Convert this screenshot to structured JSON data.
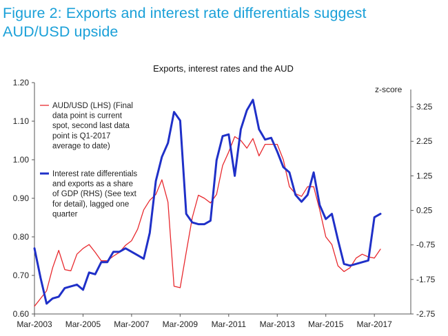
{
  "figure": {
    "title_line1": "Figure 2: Exports and interest rate differentials suggest",
    "title_line2": "AUD/USD upside"
  },
  "chart_data": {
    "type": "line",
    "title": "Exports, interest rates and the AUD",
    "right_axis_label": "z-score",
    "x_tick_labels": [
      "Mar-2003",
      "Mar-2005",
      "Mar-2007",
      "Mar-2009",
      "Mar-2011",
      "Mar-2013",
      "Mar-2015",
      "Mar-2017"
    ],
    "x_tick_years": [
      2003,
      2005,
      2007,
      2009,
      2011,
      2013,
      2015,
      2017
    ],
    "xlim": [
      2003,
      2018.5
    ],
    "y_left": {
      "lim": [
        0.6,
        1.2
      ],
      "ticks": [
        0.6,
        0.7,
        0.8,
        0.9,
        1.0,
        1.1,
        1.2
      ],
      "tick_labels": [
        "0.60",
        "0.70",
        "0.80",
        "0.90",
        "1.00",
        "1.10",
        "1.20"
      ]
    },
    "y_right": {
      "lim": [
        -2.75,
        3.75
      ],
      "ticks": [
        -2.75,
        -1.75,
        -0.75,
        0.25,
        1.25,
        2.25,
        3.25
      ],
      "tick_labels": [
        "-2.75",
        "-1.75",
        "-0.75",
        "0.25",
        "1.25",
        "2.25",
        "3.25"
      ]
    },
    "grid": false,
    "legend_placement": "top-left",
    "series": [
      {
        "name": "AUD/USD (LHS) (Final data point is current spot, second last data point is Q1-2017 average to date)",
        "legend_lines": [
          "AUD/USD (LHS) (Final",
          "data point is current",
          "spot, second last data",
          "point is Q1-2017",
          "average to date)"
        ],
        "axis": "left",
        "color": "#e8292e",
        "x": [
          2003.0,
          2003.25,
          2003.5,
          2003.75,
          2004.0,
          2004.25,
          2004.5,
          2004.75,
          2005.0,
          2005.25,
          2005.5,
          2005.75,
          2006.0,
          2006.25,
          2006.5,
          2006.75,
          2007.0,
          2007.25,
          2007.5,
          2007.75,
          2008.0,
          2008.25,
          2008.5,
          2008.75,
          2009.0,
          2009.25,
          2009.5,
          2009.75,
          2010.0,
          2010.25,
          2010.5,
          2010.75,
          2011.0,
          2011.25,
          2011.5,
          2011.75,
          2012.0,
          2012.25,
          2012.5,
          2012.75,
          2013.0,
          2013.25,
          2013.5,
          2013.75,
          2014.0,
          2014.25,
          2014.5,
          2014.75,
          2015.0,
          2015.25,
          2015.5,
          2015.75,
          2016.0,
          2016.25,
          2016.5,
          2016.75,
          2017.0,
          2017.25
        ],
        "values": [
          0.62,
          0.64,
          0.66,
          0.72,
          0.765,
          0.715,
          0.712,
          0.755,
          0.77,
          0.78,
          0.76,
          0.738,
          0.738,
          0.75,
          0.76,
          0.778,
          0.79,
          0.82,
          0.87,
          0.895,
          0.91,
          0.948,
          0.89,
          0.672,
          0.668,
          0.76,
          0.85,
          0.908,
          0.9,
          0.888,
          0.91,
          0.985,
          1.02,
          1.06,
          1.05,
          1.03,
          1.055,
          1.01,
          1.04,
          1.04,
          1.04,
          1.0,
          0.93,
          0.912,
          0.905,
          0.93,
          0.93,
          0.87,
          0.8,
          0.78,
          0.725,
          0.71,
          0.72,
          0.745,
          0.755,
          0.748,
          0.745,
          0.768
        ]
      },
      {
        "name": "Interest rate differentials and exports as a share of GDP (RHS) (See text for detail), lagged one quarter",
        "legend_lines": [
          "Interest rate differentials",
          "and exports as a share",
          "of GDP (RHS) (See text",
          "for detail), lagged one",
          "quarter"
        ],
        "axis": "right",
        "color": "#1f30c8",
        "x": [
          2003.0,
          2003.25,
          2003.5,
          2003.75,
          2004.0,
          2004.25,
          2004.5,
          2004.75,
          2005.0,
          2005.25,
          2005.5,
          2005.75,
          2006.0,
          2006.25,
          2006.5,
          2006.75,
          2007.0,
          2007.25,
          2007.5,
          2007.75,
          2008.0,
          2008.25,
          2008.5,
          2008.75,
          2009.0,
          2009.25,
          2009.5,
          2009.75,
          2010.0,
          2010.25,
          2010.5,
          2010.75,
          2011.0,
          2011.25,
          2011.5,
          2011.75,
          2012.0,
          2012.25,
          2012.5,
          2012.75,
          2013.0,
          2013.25,
          2013.5,
          2013.75,
          2014.0,
          2014.25,
          2014.5,
          2014.75,
          2015.0,
          2015.25,
          2015.5,
          2015.75,
          2016.0,
          2016.25,
          2016.5,
          2016.75,
          2017.0,
          2017.25
        ],
        "values": [
          -0.85,
          -1.7,
          -2.45,
          -2.3,
          -2.25,
          -2.0,
          -1.95,
          -1.9,
          -2.05,
          -1.55,
          -1.6,
          -1.25,
          -1.25,
          -0.95,
          -0.95,
          -0.85,
          -0.95,
          -1.05,
          -1.15,
          -0.4,
          1.1,
          1.8,
          2.2,
          3.1,
          2.85,
          0.15,
          -0.1,
          -0.15,
          -0.15,
          -0.05,
          1.7,
          2.4,
          2.45,
          1.25,
          2.6,
          3.15,
          3.45,
          2.6,
          2.3,
          2.35,
          1.95,
          1.5,
          1.35,
          0.7,
          0.5,
          0.7,
          1.35,
          0.4,
          0.0,
          0.15,
          -0.6,
          -1.3,
          -1.35,
          -1.3,
          -1.25,
          -1.2,
          0.05,
          0.15
        ]
      }
    ]
  }
}
